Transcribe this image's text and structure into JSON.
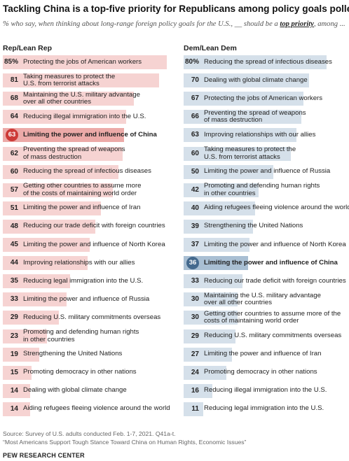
{
  "title": "Tackling China is a top-five priority for Republicans among policy goals polled",
  "subtitle_pre": "% who say, when thinking about long-range foreign policy goals for the U.S., __ should be a ",
  "subtitle_emph": "top priority",
  "subtitle_post": ", among ...",
  "colors": {
    "rep_bar": "#f6d3d2",
    "rep_hl_bar": "#ecaaa8",
    "rep_hl_dot": "#cd3a37",
    "dem_bar": "#d5e0ea",
    "dem_hl_bar": "#a9bfd3",
    "dem_hl_dot": "#44698d"
  },
  "chart_data": [
    {
      "type": "bar",
      "title": "Rep/Lean Rep",
      "highlight_index": 4,
      "categories": [
        "Protecting the jobs of American workers",
        "Taking measures to protect the\nU.S. from terrorist attacks",
        "Maintaining the U.S. military advantage\nover all other countries",
        "Reducing illegal immigration into the U.S.",
        "Limiting the power and influence of China",
        "Preventing the spread of weapons\nof mass destruction",
        "Reducing the spread of infectious diseases",
        "Getting other countries to assume more\nof the costs of maintaining world order",
        "Limiting the power and influence of Iran",
        "Reducing our trade deficit with foreign countries",
        "Limiting the power and influence of North Korea",
        "Improving relationships with our allies",
        "Reducing legal immigration into the U.S.",
        "Limiting the power and influence of Russia",
        "Reducing U.S. military commitments overseas",
        "Promoting and defending human rights\nin other countries",
        "Strengthening the United Nations",
        "Promoting democracy in other nations",
        "Dealing with global climate change",
        "Aiding refugees fleeing violence around the world"
      ],
      "values": [
        85,
        81,
        68,
        64,
        63,
        62,
        60,
        57,
        51,
        48,
        45,
        44,
        35,
        33,
        29,
        23,
        19,
        15,
        14,
        14
      ],
      "value_labels": [
        "85%",
        "81",
        "68",
        "64",
        "63",
        "62",
        "60",
        "57",
        "51",
        "48",
        "45",
        "44",
        "35",
        "33",
        "29",
        "23",
        "19",
        "15",
        "14",
        "14"
      ],
      "xlim": [
        0,
        100
      ]
    },
    {
      "type": "bar",
      "title": "Dem/Lean Dem",
      "highlight_index": 11,
      "categories": [
        "Reducing the spread of infectious diseases",
        "Dealing with global climate change",
        "Protecting the jobs of American workers",
        "Preventing the spread of weapons\nof mass destruction",
        "Improving relationships with our allies",
        "Taking measures to protect the\nU.S. from terrorist attacks",
        "Limiting the power and influence of Russia",
        "Promoting and defending human rights\nin other countries",
        "Aiding refugees fleeing violence around the world",
        "Strengthening the United Nations",
        "Limiting the power and influence of North Korea",
        "Limiting the power and influence of China",
        "Reducing our trade deficit with foreign countries",
        "Maintaining the U.S. military advantage\nover all other countries",
        "Getting other countries to assume more of the\ncosts of maintaining world order",
        "Reducing U.S. military commitments overseas",
        "Limiting the power and influence of Iran",
        "Promoting democracy in other nations",
        "Reducing illegal immigration into the U.S.",
        "Reducing legal immigration into the U.S."
      ],
      "values": [
        80,
        70,
        67,
        66,
        63,
        60,
        50,
        42,
        40,
        39,
        37,
        36,
        33,
        30,
        30,
        29,
        27,
        24,
        16,
        11
      ],
      "value_labels": [
        "80%",
        "70",
        "67",
        "66",
        "63",
        "60",
        "50",
        "42",
        "40",
        "39",
        "37",
        "36",
        "33",
        "30",
        "30",
        "29",
        "27",
        "24",
        "16",
        "11"
      ],
      "xlim": [
        0,
        100
      ]
    }
  ],
  "footer": {
    "source": "Source: Survey of U.S. adults conducted Feb. 1-7, 2021. Q41a-t.",
    "report": "“Most Americans Support Tough Stance Toward China on Human Rights, Economic Issues”",
    "brand": "PEW RESEARCH CENTER"
  }
}
